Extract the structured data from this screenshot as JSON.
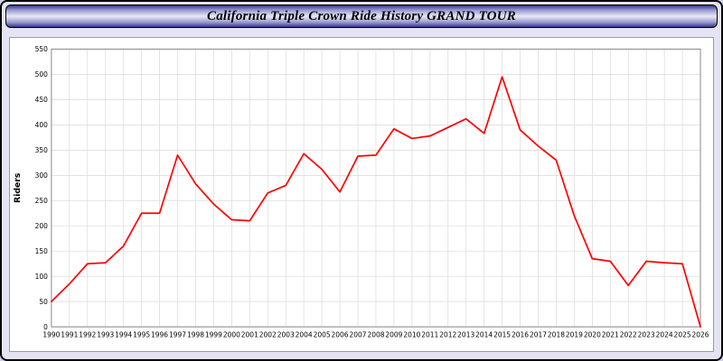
{
  "header": {
    "title": "California Triple Crown Ride History GRAND TOUR"
  },
  "chart_data": {
    "type": "line",
    "title": "California Triple Crown Ride History GRAND TOUR",
    "xlabel": "",
    "ylabel": "Riders",
    "ylim": [
      0,
      550
    ],
    "ytick_step": 50,
    "grid": true,
    "legend": "none",
    "line_color": "#ff0000",
    "x": [
      "1990",
      "1991",
      "1992",
      "1993",
      "1994",
      "1995",
      "1996",
      "1997",
      "1998",
      "1999",
      "2000",
      "2001",
      "2002",
      "2003",
      "2004",
      "2005",
      "2006",
      "2007",
      "2008",
      "2009",
      "2010",
      "2011",
      "2012",
      "2013",
      "2014",
      "2015",
      "2016",
      "2017",
      "2018",
      "2019",
      "2020",
      "2021",
      "2022",
      "2023",
      "2024",
      "2025",
      "2026"
    ],
    "values": [
      50,
      85,
      125,
      127,
      160,
      225,
      225,
      340,
      283,
      243,
      212,
      210,
      265,
      280,
      343,
      312,
      267,
      338,
      340,
      392,
      373,
      378,
      395,
      412,
      383,
      495,
      390,
      358,
      330,
      220,
      135,
      130,
      82,
      130,
      127,
      125,
      0
    ]
  }
}
